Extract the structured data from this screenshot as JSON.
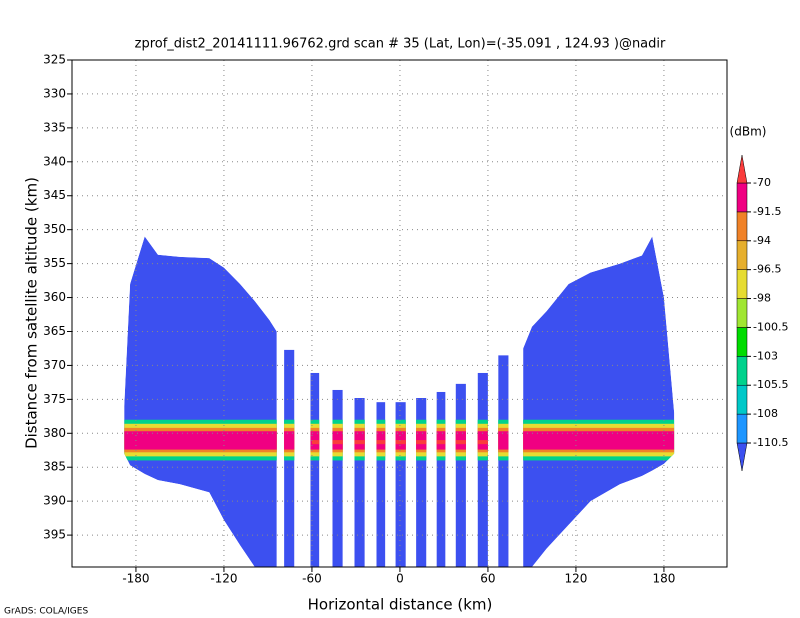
{
  "chart_data": {
    "type": "profile",
    "title": "zprof_dist2_20141111.96762.grd  scan # 35  (Lat, Lon)=(-35.091 , 124.93 )@nadir",
    "x_label": "Horizontal distance (km)",
    "y_label": "Distance from satellite altitude (km)",
    "units": "(dBm)",
    "credit": "GrADS: COLA/IGES",
    "xlim": [
      -223.6,
      223
    ],
    "ylim": [
      325,
      399.7
    ],
    "y_inverted": true,
    "xticks": [
      -180,
      -120,
      -60,
      0,
      60,
      120,
      180
    ],
    "yticks": [
      325,
      330,
      335,
      340,
      345,
      350,
      355,
      360,
      365,
      370,
      375,
      380,
      385,
      390,
      395
    ],
    "grid": true,
    "levels": [
      -110.5,
      -108,
      -105.5,
      -103,
      -100.5,
      -98,
      -96.5,
      -94,
      -91.5,
      -70
    ],
    "colors": [
      "#3c50f0",
      "#1e96ff",
      "#00c8c8",
      "#00d28c",
      "#00dc00",
      "#a0e632",
      "#e6dc32",
      "#e6af2d",
      "#f08228",
      "#f00082",
      "#fa3c3c"
    ],
    "background_value": -111,
    "swaths": [
      {
        "x": [
          -188,
          -184,
          -174,
          -165,
          -150,
          -130,
          -120,
          -109,
          -99,
          -89,
          -84
        ],
        "top": [
          376,
          358,
          351,
          353.7,
          354,
          354.2,
          355.6,
          358,
          360.5,
          363.3,
          365
        ],
        "bottom": [
          383,
          384.7,
          386,
          386.9,
          387.5,
          388.7,
          392.8,
          396.5,
          399.7,
          399.7,
          399.7
        ]
      },
      {
        "x": [
          84,
          90,
          100,
          115,
          130,
          150,
          165,
          172,
          180,
          187
        ],
        "top": [
          367.5,
          364.3,
          362,
          358,
          356.3,
          355,
          353.8,
          351,
          360,
          377
        ],
        "bottom": [
          399.7,
          399.7,
          397,
          393.5,
          390,
          387.5,
          386.3,
          385.5,
          384.5,
          383
        ]
      }
    ],
    "strips": [
      {
        "x0": -79,
        "x1": -72,
        "top": 367.7
      },
      {
        "x0": -61,
        "x1": -55,
        "top": 371.1
      },
      {
        "x0": -46,
        "x1": -39,
        "top": 373.6
      },
      {
        "x0": -31,
        "x1": -24,
        "top": 374.8
      },
      {
        "x0": -16,
        "x1": -10,
        "top": 375.4
      },
      {
        "x0": -3,
        "x1": 4,
        "top": 375.4
      },
      {
        "x0": 11,
        "x1": 18,
        "top": 374.8
      },
      {
        "x0": 25,
        "x1": 31,
        "top": 373.9
      },
      {
        "x0": 38,
        "x1": 45,
        "top": 372.7
      },
      {
        "x0": 53,
        "x1": 60,
        "top": 371.1
      },
      {
        "x0": 67,
        "x1": 74,
        "top": 368.5
      }
    ],
    "band": [
      {
        "value": -104,
        "x0": -188,
        "x1": 187,
        "top": 378,
        "bottom": 384
      },
      {
        "value": -97,
        "x0": -188,
        "x1": 187,
        "top": 378.6,
        "bottom": 383.4
      },
      {
        "value": -93,
        "x0": -188,
        "x1": 187,
        "top": 379.2,
        "bottom": 382.8
      },
      {
        "value": -80,
        "x0": -188,
        "x1": 187,
        "top": 379.7,
        "bottom": 382.4
      },
      {
        "value": -65,
        "x0": -60,
        "x1": 60,
        "top": 381,
        "bottom": 381.6
      }
    ]
  }
}
